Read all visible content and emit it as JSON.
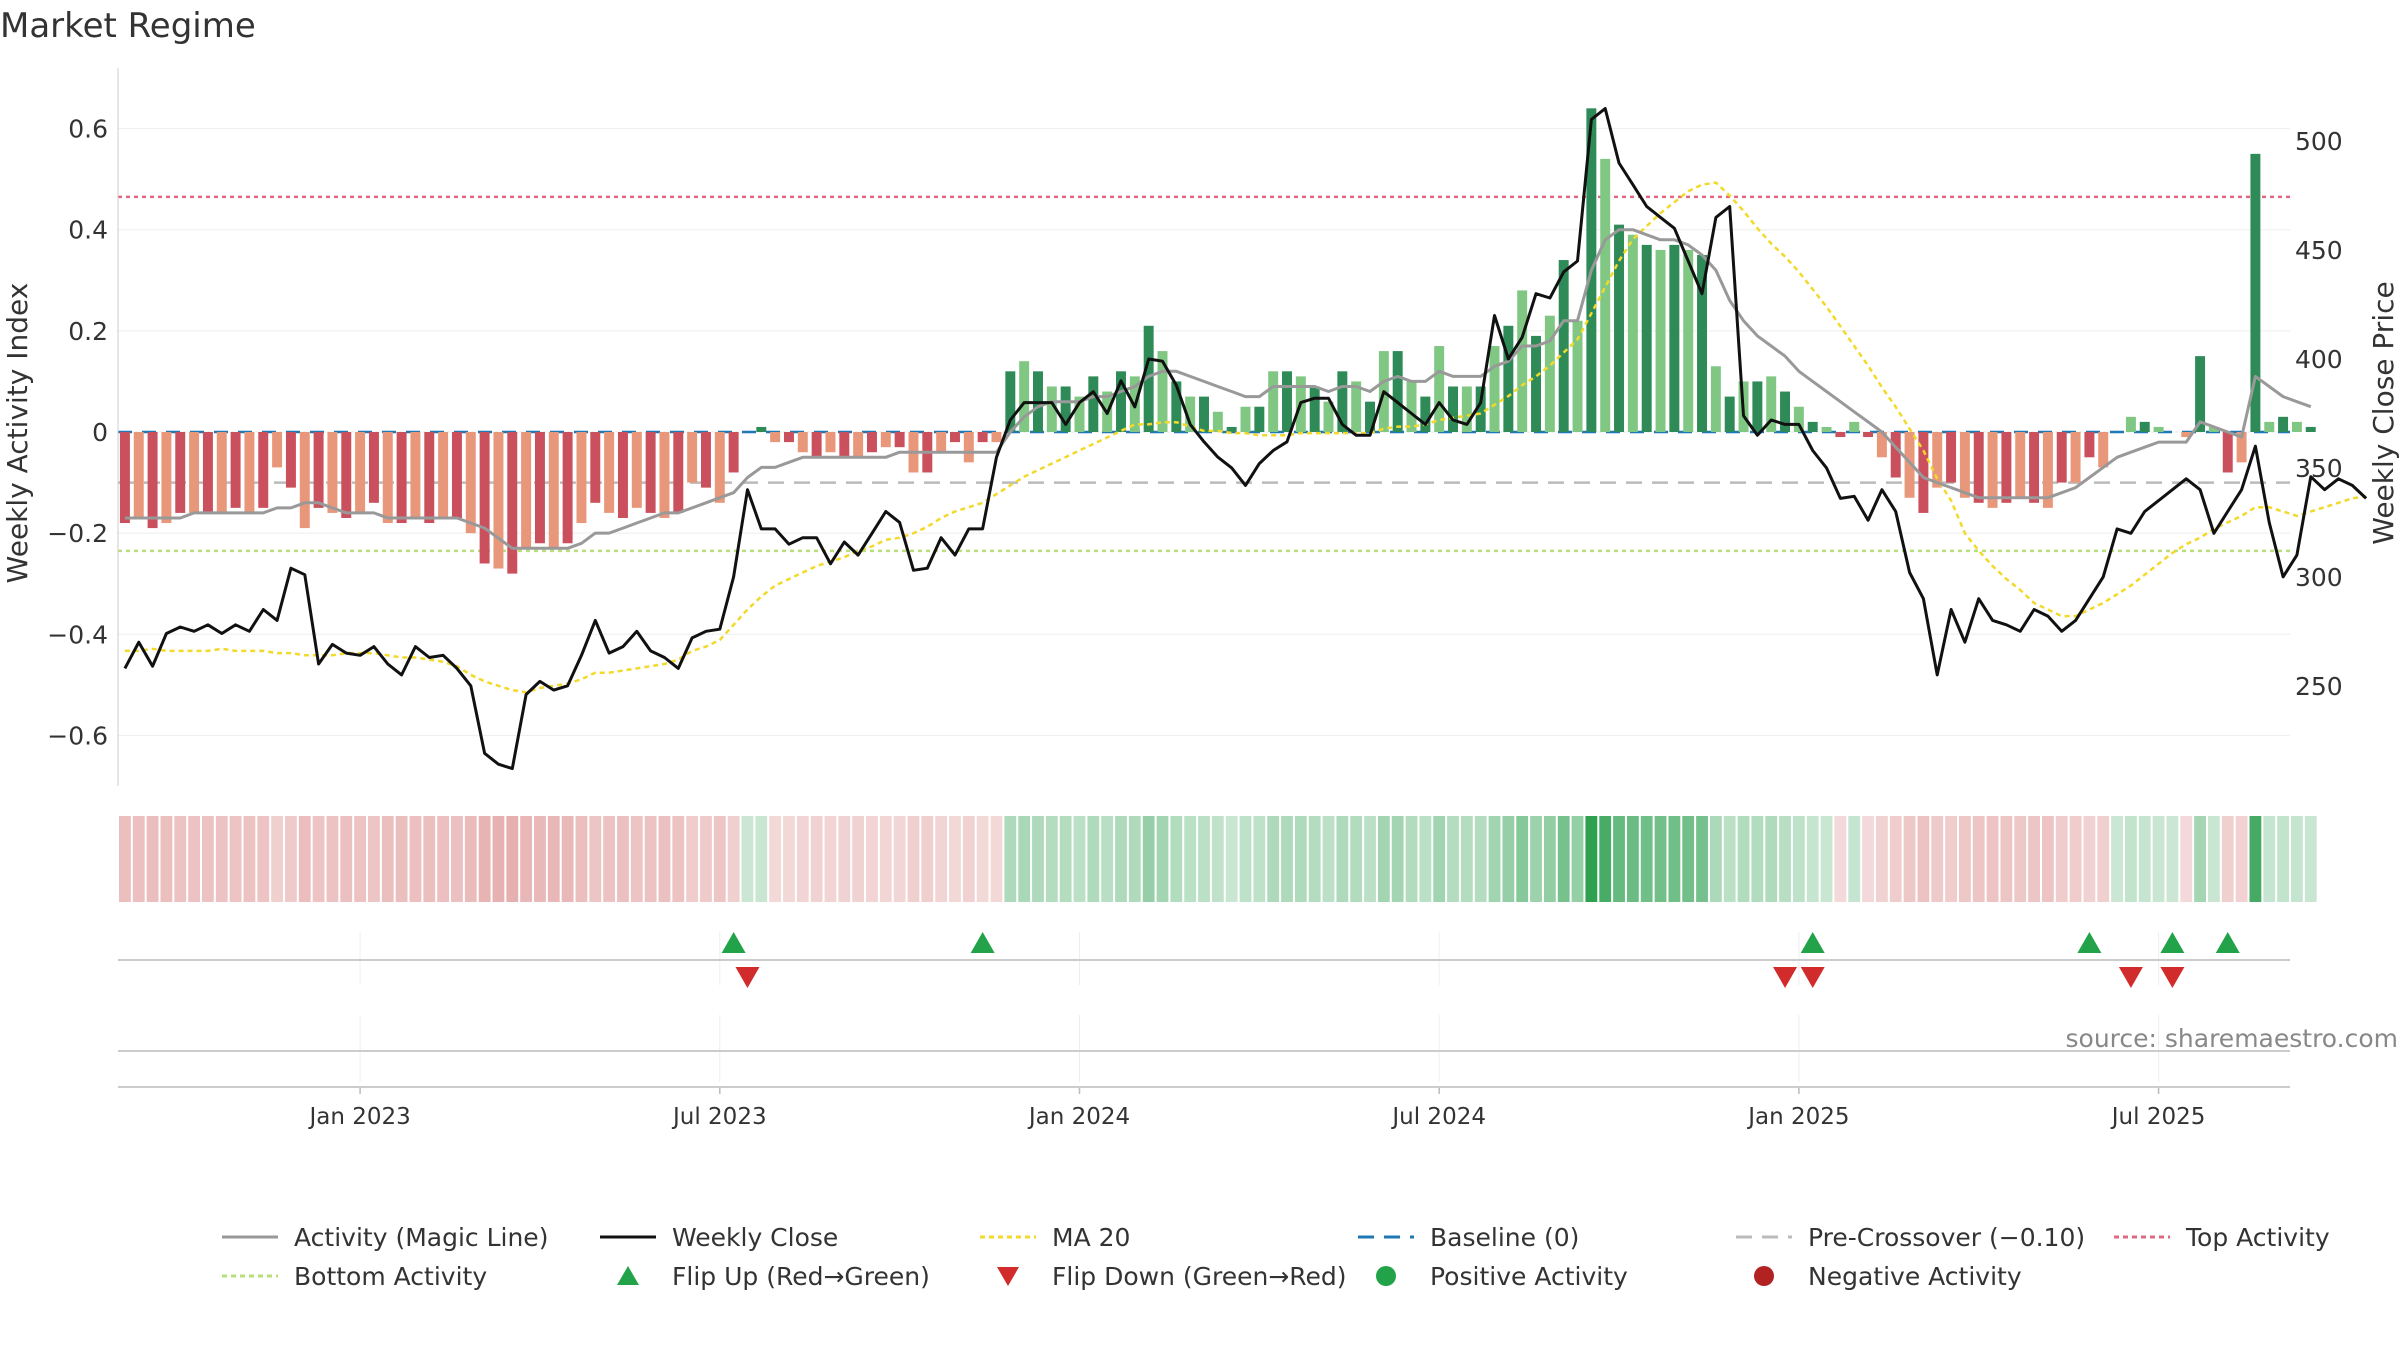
{
  "chart_data": {
    "type": "bar",
    "title": "Market Regime",
    "ylabel_left": "Weekly Activity Index",
    "ylabel_right": "Weekly Close Price",
    "source": "source: sharemaestro.com",
    "y_left_ticks": [
      "0.6",
      "0.4",
      "0.2",
      "0",
      "−0.2",
      "−0.4",
      "−0.6"
    ],
    "y_left_tick_values": [
      0.6,
      0.4,
      0.2,
      0,
      -0.2,
      -0.4,
      -0.6
    ],
    "y_left_range": [
      -0.7,
      0.7
    ],
    "y_right_ticks": [
      "500",
      "450",
      "400",
      "350",
      "300",
      "250"
    ],
    "y_right_tick_values": [
      500,
      450,
      400,
      350,
      300,
      250
    ],
    "y_right_range": [
      204,
      529
    ],
    "x_ticks": [
      "Jan 2023",
      "Jul 2023",
      "Jan 2024",
      "Jul 2024",
      "Jan 2025",
      "Jul 2025"
    ],
    "x_tick_weeks": [
      17,
      43,
      69,
      95,
      121,
      147
    ],
    "n_weeks": 157,
    "reference_lines": {
      "top_activity": 0.465,
      "bottom_activity": -0.235,
      "pre_crossover": -0.1,
      "baseline": 0
    },
    "activity": [
      -0.18,
      -0.17,
      -0.19,
      -0.18,
      -0.16,
      -0.16,
      -0.16,
      -0.16,
      -0.15,
      -0.16,
      -0.15,
      -0.07,
      -0.11,
      -0.19,
      -0.15,
      -0.16,
      -0.17,
      -0.16,
      -0.14,
      -0.18,
      -0.18,
      -0.17,
      -0.18,
      -0.17,
      -0.17,
      -0.2,
      -0.26,
      -0.27,
      -0.28,
      -0.23,
      -0.22,
      -0.23,
      -0.22,
      -0.18,
      -0.14,
      -0.16,
      -0.17,
      -0.15,
      -0.16,
      -0.17,
      -0.16,
      -0.1,
      -0.11,
      -0.14,
      -0.08,
      0,
      0.01,
      -0.02,
      -0.02,
      -0.04,
      -0.05,
      -0.04,
      -0.05,
      -0.05,
      -0.04,
      -0.03,
      -0.03,
      -0.08,
      -0.08,
      -0.04,
      -0.02,
      -0.06,
      -0.02,
      -0.02,
      0.12,
      0.14,
      0.12,
      0.09,
      0.09,
      0.07,
      0.11,
      0.08,
      0.12,
      0.11,
      0.21,
      0.16,
      0.1,
      0.07,
      0.07,
      0.04,
      0.01,
      0.05,
      0.05,
      0.12,
      0.12,
      0.11,
      0.09,
      0.06,
      0.12,
      0.1,
      0.06,
      0.16,
      0.16,
      0.1,
      0.07,
      0.17,
      0.09,
      0.09,
      0.09,
      0.17,
      0.21,
      0.28,
      0.19,
      0.23,
      0.34,
      0.22,
      0.64,
      0.54,
      0.41,
      0.39,
      0.37,
      0.36,
      0.37,
      0.36,
      0.35,
      0.13,
      0.07,
      0.1,
      0.1,
      0.11,
      0.08,
      0.05,
      0.02,
      0.01,
      -0.01,
      0.02,
      -0.01,
      -0.05,
      -0.09,
      -0.13,
      -0.16,
      -0.11,
      -0.1,
      -0.13,
      -0.14,
      -0.15,
      -0.14,
      -0.13,
      -0.14,
      -0.15,
      -0.1,
      -0.1,
      -0.05,
      -0.07,
      0,
      0.03,
      0.02,
      0.01,
      0,
      -0.01,
      0.15,
      0.01,
      -0.08,
      -0.06,
      0.55,
      0.02,
      0.03,
      0.02,
      0.01
    ],
    "magic_line": [
      -0.17,
      -0.17,
      -0.17,
      -0.17,
      -0.17,
      -0.16,
      -0.16,
      -0.16,
      -0.16,
      -0.16,
      -0.16,
      -0.15,
      -0.15,
      -0.14,
      -0.14,
      -0.15,
      -0.16,
      -0.16,
      -0.16,
      -0.17,
      -0.17,
      -0.17,
      -0.17,
      -0.17,
      -0.17,
      -0.18,
      -0.19,
      -0.21,
      -0.23,
      -0.23,
      -0.23,
      -0.23,
      -0.23,
      -0.22,
      -0.2,
      -0.2,
      -0.19,
      -0.18,
      -0.17,
      -0.16,
      -0.16,
      -0.15,
      -0.14,
      -0.13,
      -0.12,
      -0.09,
      -0.07,
      -0.07,
      -0.06,
      -0.05,
      -0.05,
      -0.05,
      -0.05,
      -0.05,
      -0.05,
      -0.05,
      -0.04,
      -0.04,
      -0.04,
      -0.04,
      -0.04,
      -0.04,
      -0.04,
      -0.04,
      0.0,
      0.03,
      0.05,
      0.06,
      0.06,
      0.06,
      0.07,
      0.07,
      0.08,
      0.09,
      0.11,
      0.12,
      0.12,
      0.11,
      0.1,
      0.09,
      0.08,
      0.07,
      0.07,
      0.09,
      0.09,
      0.09,
      0.09,
      0.08,
      0.09,
      0.09,
      0.08,
      0.1,
      0.11,
      0.1,
      0.1,
      0.12,
      0.11,
      0.11,
      0.11,
      0.13,
      0.14,
      0.17,
      0.17,
      0.18,
      0.22,
      0.22,
      0.32,
      0.38,
      0.4,
      0.4,
      0.39,
      0.38,
      0.38,
      0.37,
      0.35,
      0.32,
      0.26,
      0.22,
      0.19,
      0.17,
      0.15,
      0.12,
      0.1,
      0.08,
      0.06,
      0.04,
      0.02,
      0.0,
      -0.03,
      -0.06,
      -0.09,
      -0.1,
      -0.11,
      -0.12,
      -0.13,
      -0.13,
      -0.13,
      -0.13,
      -0.13,
      -0.13,
      -0.12,
      -0.11,
      -0.09,
      -0.07,
      -0.05,
      -0.04,
      -0.03,
      -0.02,
      -0.02,
      -0.02,
      0.02,
      0.01,
      0.0,
      -0.01,
      0.11,
      0.09,
      0.07,
      0.06,
      0.05
    ],
    "weekly_close": [
      258,
      270,
      259,
      274,
      277,
      275,
      278,
      274,
      278,
      275,
      285,
      280,
      304,
      301,
      260,
      269,
      265,
      264,
      268,
      260,
      255,
      268,
      263,
      264,
      258,
      250,
      219,
      214,
      212,
      246,
      252,
      248,
      250,
      264,
      280,
      265,
      268,
      275,
      266,
      263,
      258,
      272,
      275,
      276,
      300,
      340,
      322,
      322,
      315,
      318,
      318,
      306,
      316,
      310,
      320,
      330,
      325,
      303,
      304,
      318,
      310,
      322,
      322,
      355,
      372,
      380,
      380,
      380,
      370,
      380,
      385,
      375,
      390,
      378,
      400,
      399,
      388,
      370,
      362,
      355,
      350,
      342,
      352,
      358,
      362,
      380,
      382,
      382,
      370,
      365,
      365,
      385,
      380,
      375,
      370,
      380,
      372,
      370,
      380,
      420,
      400,
      410,
      430,
      428,
      440,
      445,
      510,
      515,
      490,
      480,
      470,
      465,
      460,
      445,
      430,
      465,
      470,
      374,
      365,
      372,
      370,
      370,
      358,
      350,
      336,
      337,
      326,
      340,
      330,
      302,
      290,
      255,
      285,
      270,
      290,
      280,
      278,
      275,
      285,
      282,
      275,
      280,
      290,
      300,
      322,
      320,
      330,
      335,
      340,
      345,
      340,
      320,
      330,
      340,
      360,
      325,
      300,
      310,
      346,
      340,
      345,
      342,
      336
    ],
    "ma20": [
      266,
      266,
      267,
      266,
      266,
      266,
      266,
      267,
      266,
      266,
      266,
      265,
      265,
      264,
      264,
      264,
      265,
      265,
      265,
      264,
      263,
      263,
      262,
      261,
      259,
      255,
      252,
      250,
      248,
      247,
      249,
      250,
      251,
      253,
      256,
      256,
      257,
      258,
      259,
      260,
      262,
      266,
      268,
      271,
      278,
      285,
      291,
      296,
      299,
      302,
      305,
      307,
      309,
      312,
      314,
      317,
      318,
      320,
      323,
      327,
      330,
      332,
      334,
      338,
      342,
      346,
      349,
      352,
      355,
      358,
      361,
      364,
      367,
      370,
      370,
      371,
      371,
      369,
      367,
      367,
      366,
      366,
      365,
      365,
      365,
      366,
      366,
      366,
      366,
      366,
      366,
      368,
      369,
      369,
      370,
      372,
      373,
      374,
      375,
      379,
      383,
      388,
      392,
      397,
      403,
      409,
      421,
      433,
      445,
      455,
      461,
      467,
      472,
      477,
      480,
      481,
      475,
      468,
      460,
      453,
      447,
      440,
      432,
      424,
      415,
      406,
      397,
      387,
      378,
      368,
      358,
      345,
      335,
      320,
      312,
      305,
      299,
      294,
      288,
      285,
      282,
      282,
      285,
      288,
      292,
      296,
      301,
      306,
      311,
      315,
      318,
      322,
      325,
      328,
      332,
      332,
      330,
      328,
      330,
      332,
      334,
      336,
      337
    ],
    "regime_strip": "0.18 scaled red/green intensity per week",
    "flip_up_weeks": [
      44,
      62,
      122,
      142,
      148,
      152
    ],
    "flip_down_weeks": [
      45,
      120,
      122,
      145,
      148
    ],
    "colors": {
      "bar_red_dark": "#c9505c",
      "bar_red_light": "#e8977a",
      "bar_green_dark": "#2e8b57",
      "bar_green_light": "#81c784",
      "magic_line": "#999999",
      "weekly_close": "#111111",
      "ma20": "#f2d92a",
      "baseline": "#1f77b4",
      "pre_crossover": "#bbbbbb",
      "top_activity": "#e06880",
      "bottom_activity": "#b8e07a",
      "flip_up": "#22a34a",
      "flip_down": "#d22b2b",
      "positive_activity": "#22a34a",
      "negative_activity": "#b22222"
    },
    "legend": [
      {
        "label": "Activity (Magic Line)",
        "style": "solid",
        "color": "#999999"
      },
      {
        "label": "Weekly Close",
        "style": "solid",
        "color": "#111111"
      },
      {
        "label": "MA 20",
        "style": "dotted",
        "color": "#f2d92a"
      },
      {
        "label": "Baseline (0)",
        "style": "dashed",
        "color": "#1f77b4"
      },
      {
        "label": "Pre-Crossover (−0.10)",
        "style": "dashed",
        "color": "#bbbbbb"
      },
      {
        "label": "Top Activity",
        "style": "dotted",
        "color": "#e06880"
      },
      {
        "label": "Bottom Activity",
        "style": "dotted",
        "color": "#b8e07a"
      },
      {
        "label": "Flip Up (Red→Green)",
        "style": "tri-up",
        "color": "#22a34a"
      },
      {
        "label": "Flip Down (Green→Red)",
        "style": "tri-down",
        "color": "#d22b2b"
      },
      {
        "label": "Positive Activity",
        "style": "dot",
        "color": "#22a34a"
      },
      {
        "label": "Negative Activity",
        "style": "dot",
        "color": "#b22222"
      }
    ],
    "legend_position": "bottom"
  }
}
